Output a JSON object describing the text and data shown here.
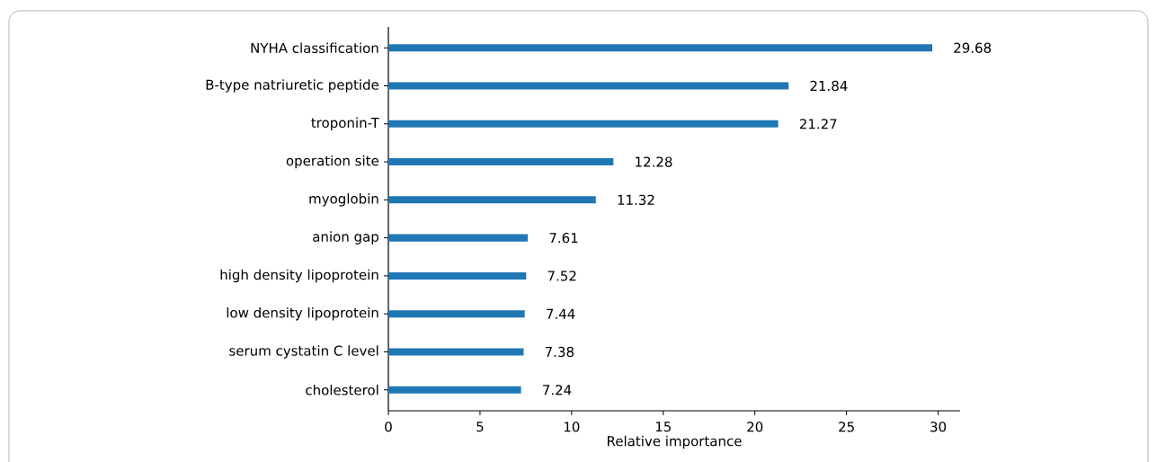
{
  "chart_data": {
    "type": "bar",
    "orientation": "horizontal",
    "xlabel": "Relative importance",
    "categories": [
      "NYHA classification",
      "B-type natriuretic peptide",
      "troponin-T",
      "operation site",
      "myoglobin",
      "anion gap",
      "high density lipoprotein",
      "low density lipoprotein",
      "serum cystatin C level",
      "cholesterol"
    ],
    "values": [
      29.68,
      21.84,
      21.27,
      12.28,
      11.32,
      7.61,
      7.52,
      7.44,
      7.38,
      7.24
    ],
    "color": "#1f77b4",
    "xlim": [
      0,
      31.2
    ],
    "xticks": [
      0,
      5,
      10,
      15,
      20,
      25,
      30
    ],
    "data_labels": true
  }
}
